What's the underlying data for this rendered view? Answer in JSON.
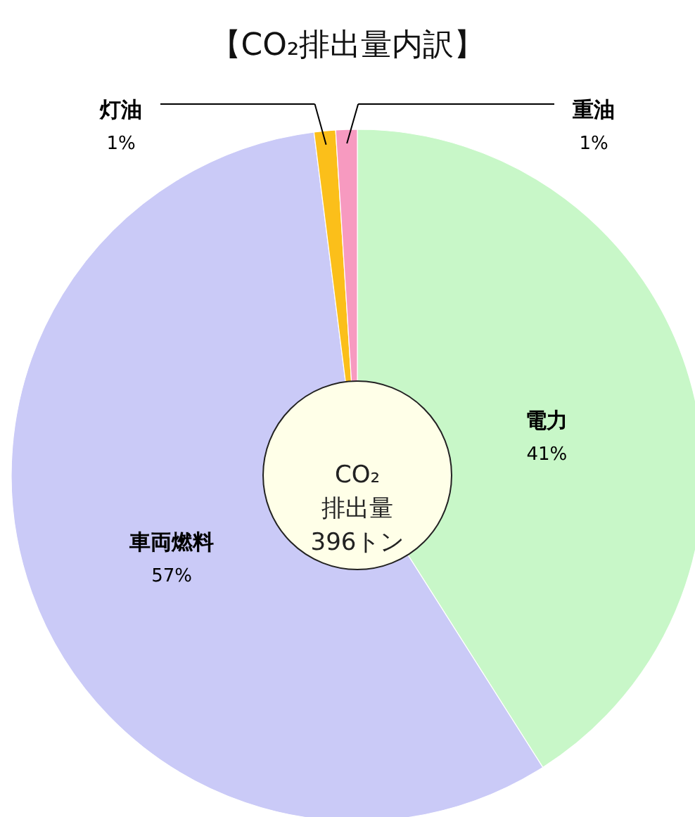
{
  "chart_data": {
    "type": "donut",
    "title": "【CO₂排出量内訳】",
    "categories": [
      "電力",
      "車両燃料",
      "灯油",
      "重油"
    ],
    "values": [
      41,
      57,
      1,
      1
    ],
    "colors": [
      "#c8f7c8",
      "#cacaf7",
      "#fbbf1a",
      "#f79ac0"
    ],
    "value_labels": [
      "41%",
      "57%",
      "1%",
      "1%"
    ],
    "annotations": [
      "CO₂\n排出量\n396トン"
    ]
  }
}
